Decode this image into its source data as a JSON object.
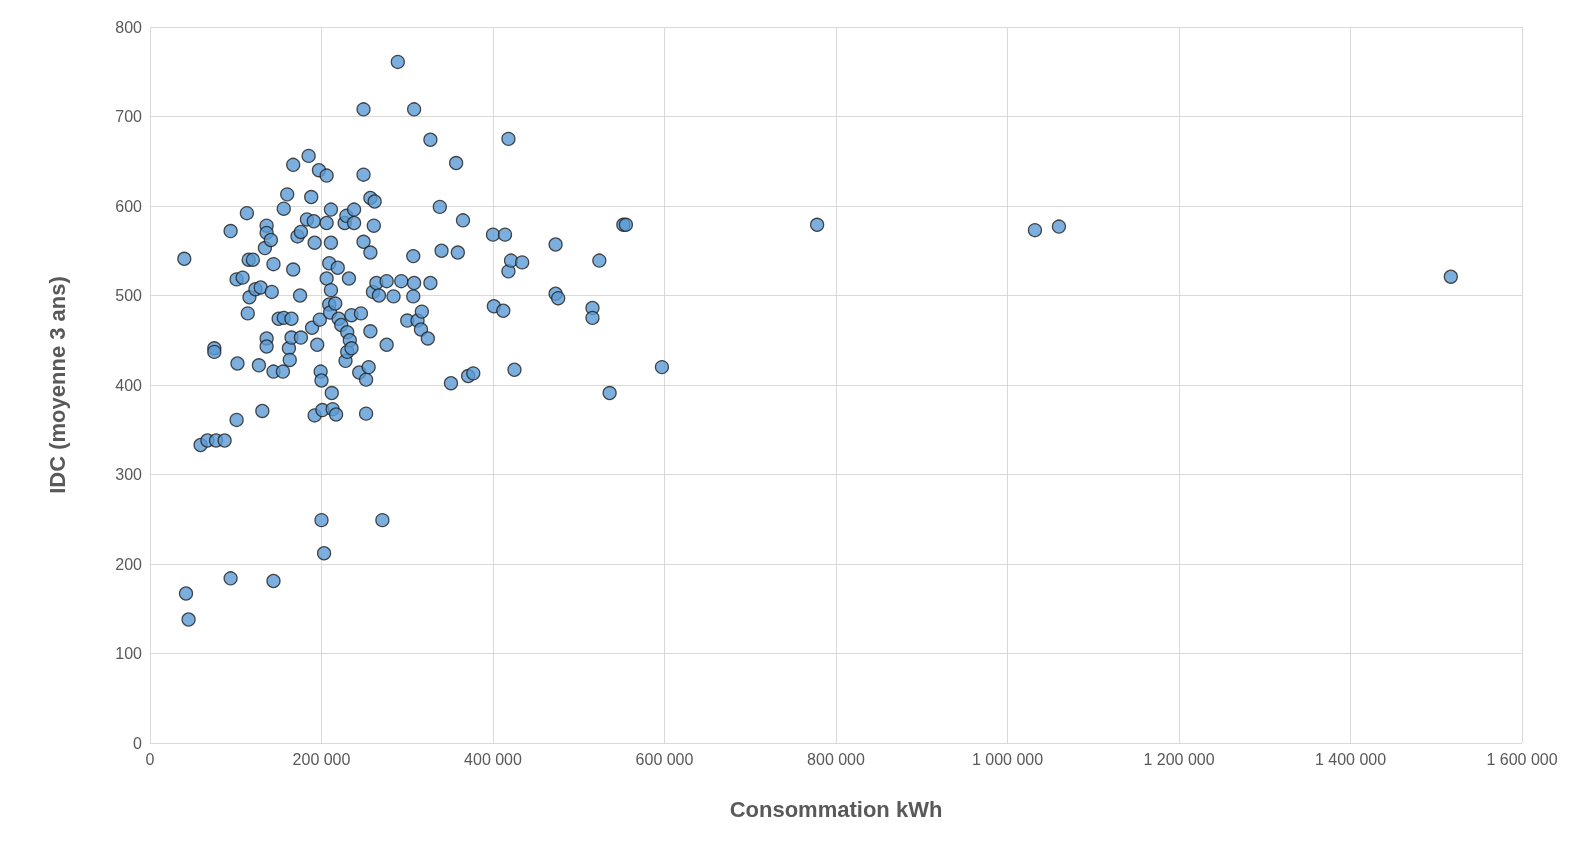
{
  "chart_data": {
    "type": "scatter",
    "xlabel": "Consommation kWh",
    "ylabel": "IDC (moyenne 3 ans)",
    "marker": "circle",
    "grid": true,
    "xlim": [
      0,
      1600000
    ],
    "xticks": [
      0,
      {
        "value": 200000,
        "label": "200 000"
      },
      {
        "value": 400000,
        "label": "400 000"
      },
      {
        "value": 600000,
        "label": "600 000"
      },
      {
        "value": 800000,
        "label": "800 000"
      },
      {
        "value": 1000000,
        "label": "1 000 000"
      },
      {
        "value": 1200000,
        "label": "1 200 000"
      },
      {
        "value": 1400000,
        "label": "1 400 000"
      },
      {
        "value": 1600000,
        "label": "1 600 000"
      }
    ],
    "ylim": [
      0,
      800
    ],
    "yticks": [
      0,
      100,
      200,
      300,
      400,
      500,
      600,
      700,
      800
    ],
    "series": [
      {
        "color": "#5b9bd5",
        "x": [
          40000,
          42000,
          45000,
          59000,
          67000,
          77000,
          87000,
          75000,
          75000,
          94000,
          94000,
          101000,
          108000,
          102000,
          101000,
          113000,
          115000,
          120000,
          114000,
          116000,
          123000,
          129000,
          127000,
          131000,
          134000,
          136000,
          136000,
          141000,
          136000,
          136000,
          144000,
          142000,
          144000,
          144000,
          150000,
          156000,
          155000,
          160000,
          156000,
          165000,
          162000,
          163000,
          165000,
          167000,
          167000,
          172000,
          176000,
          175000,
          176000,
          183000,
          185000,
          188000,
          189000,
          191000,
          192000,
          192000,
          195000,
          197000,
          199000,
          198000,
          200000,
          200000,
          203000,
          201000,
          206000,
          206000,
          206000,
          209000,
          211000,
          211000,
          209000,
          210000,
          211000,
          212000,
          213000,
          217000,
          216000,
          219000,
          220000,
          223000,
          227000,
          229000,
          228000,
          230000,
          230000,
          233000,
          232000,
          235000,
          235000,
          238000,
          238000,
          244000,
          246000,
          249000,
          249000,
          249000,
          252000,
          252000,
          255000,
          257000,
          257000,
          257000,
          260000,
          262000,
          261000,
          264000,
          267000,
          271000,
          276000,
          276000,
          284000,
          289000,
          293000,
          300000,
          308000,
          307000,
          308000,
          307000,
          312000,
          316000,
          317000,
          324000,
          327000,
          327000,
          338000,
          340000,
          357000,
          359000,
          351000,
          365000,
          371000,
          377000,
          400000,
          414000,
          401000,
          412000,
          418000,
          418000,
          421000,
          425000,
          434000,
          473000,
          473000,
          476000,
          516000,
          516000,
          524000,
          536000,
          552000,
          555000,
          597000,
          778000,
          1032000,
          1060000,
          1517000
        ],
        "values": [
          541,
          167,
          138,
          333,
          338,
          338,
          338,
          441,
          437,
          184,
          572,
          518,
          520,
          424,
          361,
          592,
          540,
          540,
          480,
          498,
          507,
          509,
          422,
          371,
          553,
          578,
          570,
          562,
          452,
          443,
          535,
          504,
          415,
          181,
          474,
          475,
          415,
          613,
          597,
          474,
          441,
          428,
          453,
          646,
          529,
          566,
          571,
          500,
          453,
          585,
          656,
          610,
          464,
          583,
          366,
          559,
          445,
          640,
          415,
          473,
          405,
          249,
          212,
          372,
          634,
          581,
          519,
          536,
          596,
          559,
          490,
          481,
          506,
          391,
          373,
          367,
          491,
          531,
          474,
          467,
          581,
          589,
          427,
          437,
          459,
          450,
          519,
          478,
          441,
          596,
          581,
          414,
          480,
          635,
          560,
          708,
          406,
          368,
          420,
          460,
          548,
          609,
          504,
          605,
          578,
          514,
          500,
          249,
          516,
          445,
          499,
          761,
          516,
          472,
          708,
          544,
          514,
          499,
          472,
          462,
          482,
          452,
          674,
          514,
          599,
          550,
          648,
          548,
          402,
          584,
          410,
          413,
          568,
          568,
          488,
          483,
          675,
          527,
          539,
          417,
          537,
          557,
          502,
          497,
          486,
          475,
          539,
          391,
          579,
          579,
          420,
          579,
          573,
          577,
          521
        ]
      }
    ]
  }
}
